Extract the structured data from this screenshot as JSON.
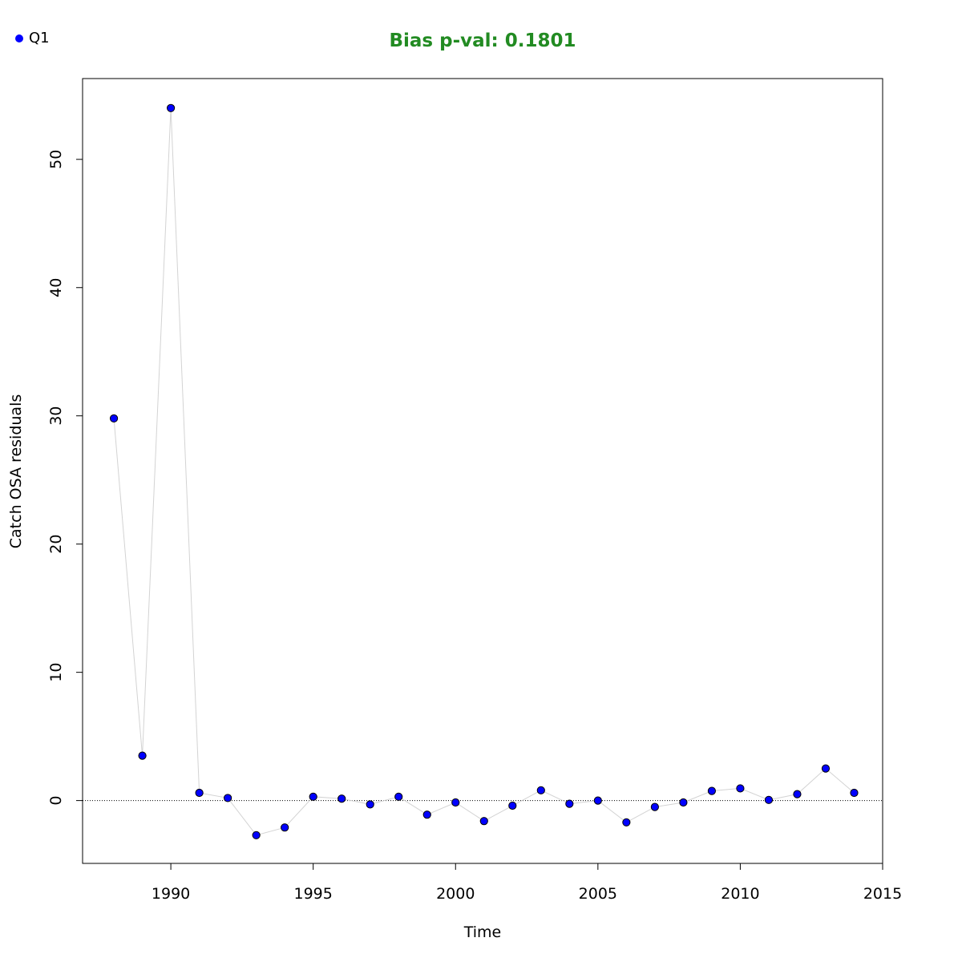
{
  "chart_data": {
    "type": "scatter",
    "title": "Bias p-val: 0.1801",
    "xlabel": "Time",
    "ylabel": "Catch OSA residuals",
    "xlim": [
      1986.9,
      2015.0
    ],
    "ylim": [
      -4.9,
      56.3
    ],
    "x_ticks": [
      1990,
      1995,
      2000,
      2005,
      2010,
      2015
    ],
    "y_ticks": [
      0,
      10,
      20,
      30,
      40,
      50
    ],
    "reference_line_y": 0,
    "legend": {
      "position": "top-left",
      "entries": [
        "Q1"
      ]
    },
    "series": [
      {
        "name": "Q1",
        "x": [
          1988,
          1989,
          1990,
          1991,
          1992,
          1993,
          1994,
          1995,
          1996,
          1997,
          1998,
          1999,
          2000,
          2001,
          2002,
          2003,
          2004,
          2005,
          2006,
          2007,
          2008,
          2009,
          2010,
          2011,
          2012,
          2013,
          2014
        ],
        "values": [
          29.8,
          3.5,
          54.0,
          0.6,
          0.2,
          -2.7,
          -2.1,
          0.3,
          0.15,
          -0.3,
          0.3,
          -1.1,
          -0.15,
          -1.6,
          -0.4,
          0.8,
          -0.25,
          0.0,
          -1.7,
          -0.5,
          -0.15,
          0.75,
          0.95,
          0.05,
          0.5,
          2.5,
          0.6
        ]
      }
    ],
    "colors": {
      "title": "#228B22",
      "point_fill": "#0000FF",
      "point_stroke": "#000000",
      "connector_line": "#D3D3D3",
      "reference_line": "#000000"
    }
  }
}
